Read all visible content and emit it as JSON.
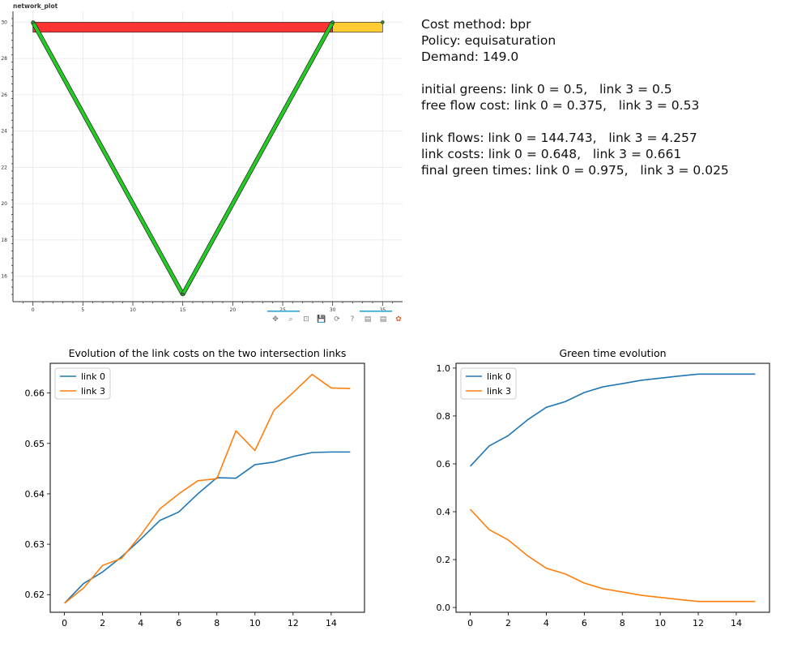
{
  "network_plot": {
    "title": "network_plot",
    "xlim": [
      -2,
      37
    ],
    "ylim": [
      14.6,
      30.6
    ],
    "x_ticks": [
      "0",
      "5",
      "10",
      "15",
      "20",
      "25",
      "30",
      "35"
    ],
    "y_ticks": [
      "16",
      "18",
      "20",
      "22",
      "24",
      "26",
      "28",
      "30"
    ],
    "colors": {
      "red_link": "#ff3333",
      "yellow_link": "#ffcc33",
      "green_link": "#22cc22",
      "grid": "#ebebeb",
      "accent": "#1f9bd1"
    },
    "links": [
      {
        "type": "bar",
        "color": "red",
        "x_start": 0,
        "x_end": 30,
        "y": 30
      },
      {
        "type": "bar",
        "color": "yellow",
        "x_start": 30,
        "x_end": 35,
        "y": 30
      },
      {
        "type": "line",
        "color": "green",
        "from": [
          0,
          30
        ],
        "to": [
          15,
          15
        ]
      },
      {
        "type": "line",
        "color": "green",
        "from": [
          15,
          15
        ],
        "to": [
          30,
          30
        ]
      }
    ],
    "nodes": [
      [
        0,
        30
      ],
      [
        15,
        15
      ],
      [
        30,
        30
      ],
      [
        35,
        30
      ]
    ],
    "toolbar": [
      "pan-icon",
      "zoom-icon",
      "box-zoom-icon",
      "save-icon",
      "reset-icon",
      "help-icon",
      "hover-icon",
      "hover-icon-2",
      "bokeh-logo-icon"
    ]
  },
  "info": {
    "cost_method": "Cost method: bpr",
    "policy": "Policy: equisaturation",
    "demand": "Demand: 149.0",
    "initial_greens": "initial greens: link 0 = 0.5,   link 3 = 0.5",
    "free_flow_cost": "free flow cost: link 0 = 0.375,   link 3 = 0.53",
    "link_flows": "link flows: link 0 = 144.743,   link 3 = 4.257",
    "link_costs": "link costs: link 0 = 0.648,   link 3 = 0.661",
    "final_green_times": "final green times: link 0 = 0.975,   link 3 = 0.025"
  },
  "chart_data": [
    {
      "type": "line",
      "title": "Evolution of the link costs on the two intersection links",
      "xlabel": "",
      "ylabel": "",
      "xlim": [
        -0.75,
        15.75
      ],
      "ylim": [
        0.6165,
        0.6659
      ],
      "x_ticks": [
        0,
        2,
        4,
        6,
        8,
        10,
        12,
        14
      ],
      "y_ticks": [
        0.62,
        0.63,
        0.64,
        0.65,
        0.66
      ],
      "y_tick_labels": [
        "0.62",
        "0.63",
        "0.64",
        "0.65",
        "0.66"
      ],
      "legend": "top-left",
      "x": [
        0,
        1,
        2,
        3,
        4,
        5,
        6,
        7,
        8,
        9,
        10,
        11,
        12,
        13,
        14,
        15
      ],
      "series": [
        {
          "name": "link 0",
          "color": "#1f77b4",
          "values": [
            0.6183,
            0.6222,
            0.6245,
            0.6275,
            0.631,
            0.6347,
            0.6364,
            0.64,
            0.6432,
            0.6431,
            0.6458,
            0.6463,
            0.6474,
            0.6482,
            0.6483,
            0.6483
          ]
        },
        {
          "name": "link 3",
          "color": "#ff7f0e",
          "values": [
            0.6183,
            0.6213,
            0.6258,
            0.6272,
            0.6318,
            0.637,
            0.64,
            0.6426,
            0.643,
            0.6525,
            0.6486,
            0.6566,
            0.6601,
            0.6637,
            0.661,
            0.6609
          ]
        }
      ]
    },
    {
      "type": "line",
      "title": "Green time evolution",
      "xlabel": "",
      "ylabel": "",
      "xlim": [
        -0.75,
        15.75
      ],
      "ylim": [
        -0.02,
        1.02
      ],
      "x_ticks": [
        0,
        2,
        4,
        6,
        8,
        10,
        12,
        14
      ],
      "y_ticks": [
        0.0,
        0.2,
        0.4,
        0.6,
        0.8,
        1.0
      ],
      "y_tick_labels": [
        "0.0",
        "0.2",
        "0.4",
        "0.6",
        "0.8",
        "1.0"
      ],
      "legend": "top-left",
      "x": [
        0,
        1,
        2,
        3,
        4,
        5,
        6,
        7,
        8,
        9,
        10,
        11,
        12,
        13,
        14,
        15
      ],
      "series": [
        {
          "name": "link 0",
          "color": "#1f77b4",
          "values": [
            0.59,
            0.675,
            0.718,
            0.783,
            0.836,
            0.86,
            0.898,
            0.922,
            0.935,
            0.949,
            0.958,
            0.967,
            0.975,
            0.975,
            0.975,
            0.975
          ]
        },
        {
          "name": "link 3",
          "color": "#ff7f0e",
          "values": [
            0.41,
            0.325,
            0.282,
            0.217,
            0.164,
            0.14,
            0.102,
            0.078,
            0.065,
            0.051,
            0.042,
            0.033,
            0.025,
            0.025,
            0.025,
            0.025
          ]
        }
      ]
    }
  ]
}
